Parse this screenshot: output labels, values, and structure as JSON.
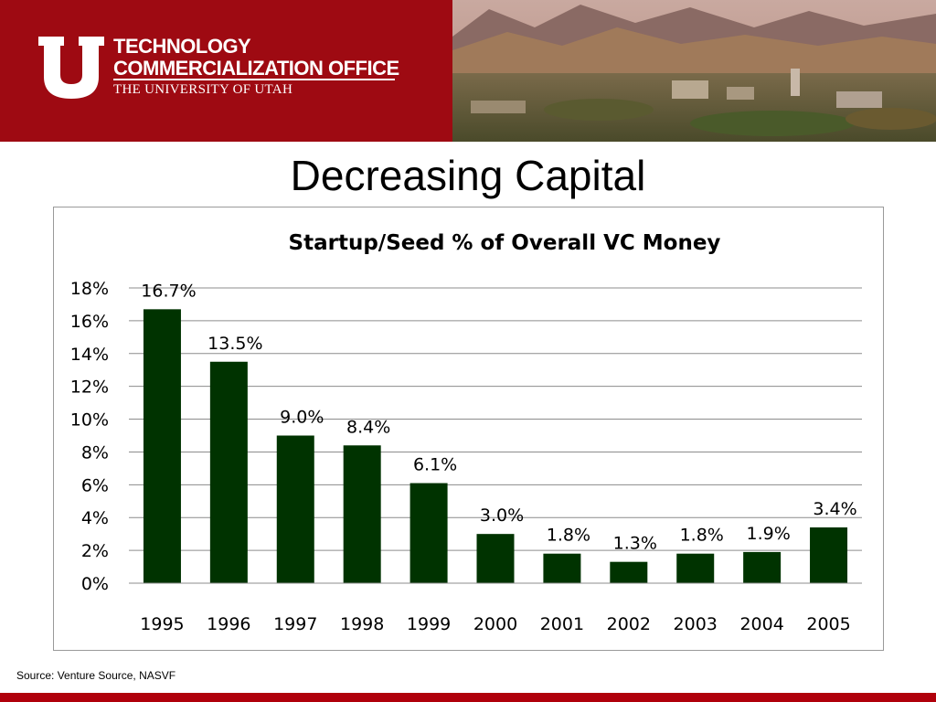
{
  "header": {
    "logo_line1": "TECHNOLOGY",
    "logo_line2": "COMMERCIALIZATION OFFICE",
    "logo_line3": "THE UNIVERSITY OF UTAH",
    "bg_color": "#9e0a12"
  },
  "slide": {
    "title": "Decreasing Capital",
    "source": "Source: Venture Source, NASVF"
  },
  "chart_data": {
    "type": "bar",
    "title": "Startup/Seed % of Overall VC Money",
    "categories": [
      "1995",
      "1996",
      "1997",
      "1998",
      "1999",
      "2000",
      "2001",
      "2002",
      "2003",
      "2004",
      "2005"
    ],
    "values": [
      16.7,
      13.5,
      9.0,
      8.4,
      6.1,
      3.0,
      1.8,
      1.3,
      1.8,
      1.9,
      3.4
    ],
    "data_labels": [
      "16.7%",
      "13.5%",
      "9.0%",
      "8.4%",
      "6.1%",
      "3.0%",
      "1.8%",
      "1.3%",
      "1.8%",
      "1.9%",
      "3.4%"
    ],
    "ylim": [
      0,
      18
    ],
    "yticks": [
      0,
      2,
      4,
      6,
      8,
      10,
      12,
      14,
      16,
      18
    ],
    "ytick_labels": [
      "0%",
      "2%",
      "4%",
      "6%",
      "8%",
      "10%",
      "12%",
      "14%",
      "16%",
      "18%"
    ],
    "grid": true,
    "bar_color": "#003300"
  }
}
